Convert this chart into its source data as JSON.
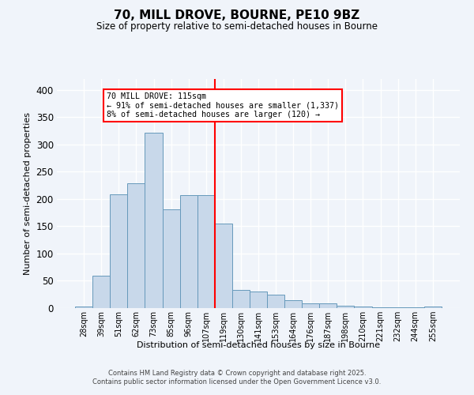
{
  "title": "70, MILL DROVE, BOURNE, PE10 9BZ",
  "subtitle": "Size of property relative to semi-detached houses in Bourne",
  "xlabel": "Distribution of semi-detached houses by size in Bourne",
  "ylabel": "Number of semi-detached properties",
  "bar_color": "#c8d8ea",
  "bar_edge_color": "#6699bb",
  "background_color": "#f0f4fa",
  "grid_color": "#ffffff",
  "categories": [
    "28sqm",
    "39sqm",
    "51sqm",
    "62sqm",
    "73sqm",
    "85sqm",
    "96sqm",
    "107sqm",
    "119sqm",
    "130sqm",
    "141sqm",
    "153sqm",
    "164sqm",
    "176sqm",
    "187sqm",
    "198sqm",
    "210sqm",
    "221sqm",
    "232sqm",
    "244sqm",
    "255sqm"
  ],
  "values": [
    3,
    60,
    209,
    229,
    322,
    181,
    207,
    207,
    155,
    34,
    30,
    25,
    14,
    9,
    9,
    5,
    3,
    1,
    1,
    1,
    3
  ],
  "property_line_idx": 8,
  "property_line_label": "70 MILL DROVE: 115sqm",
  "annotation_line1": "← 91% of semi-detached houses are smaller (1,337)",
  "annotation_line2": "8% of semi-detached houses are larger (120) →",
  "ylim": [
    0,
    420
  ],
  "yticks": [
    0,
    50,
    100,
    150,
    200,
    250,
    300,
    350,
    400
  ],
  "footer_line1": "Contains HM Land Registry data © Crown copyright and database right 2025.",
  "footer_line2": "Contains public sector information licensed under the Open Government Licence v3.0."
}
